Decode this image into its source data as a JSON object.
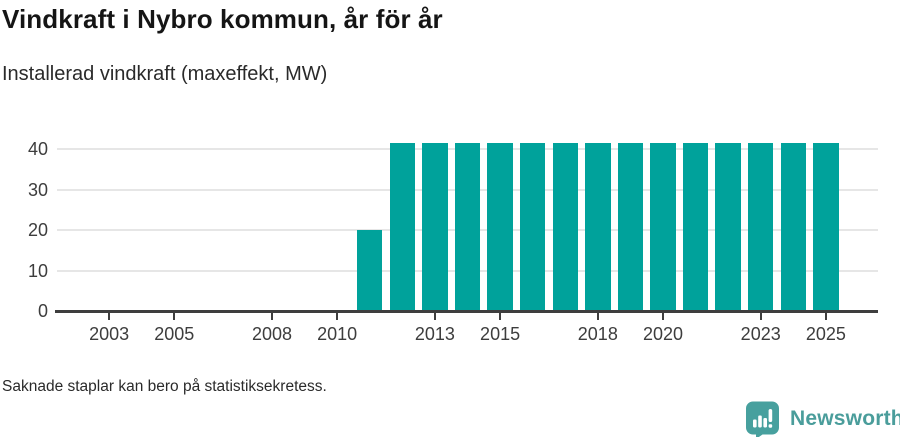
{
  "page": {
    "title": "Vindkraft i Nybro kommun, år för år",
    "subtitle": "Installerad vindkraft (maxeffekt, MW)",
    "footnote": "Saknade staplar kan bero på statistiksekretess.",
    "brand": {
      "name": "Newsworthy",
      "logo_icon": "speech-bubble-bar-chart-icon",
      "color": "#4a9d9b",
      "icon_color": "#47a09e"
    }
  },
  "chart_data": {
    "type": "bar",
    "title": "Vindkraft i Nybro kommun, år för år",
    "subtitle": "Installerad vindkraft (maxeffekt, MW)",
    "unit": "MW",
    "bar_color": "#00a29b",
    "grid": "horizontal",
    "legend": "none",
    "x_ticks": [
      2003,
      2005,
      2008,
      2010,
      2013,
      2015,
      2018,
      2020,
      2023,
      2025
    ],
    "x_range": [
      2001.4,
      2026.6
    ],
    "y_ticks": [
      0,
      10,
      20,
      30,
      40
    ],
    "ylim": [
      0,
      43
    ],
    "axis_color": "#3e3e3e",
    "grid_color": "#e6e6e6",
    "bars": [
      {
        "year": 2011,
        "value": 20
      },
      {
        "year": 2012,
        "value": 41.5
      },
      {
        "year": 2013,
        "value": 41.5
      },
      {
        "year": 2014,
        "value": 41.5
      },
      {
        "year": 2015,
        "value": 41.5
      },
      {
        "year": 2016,
        "value": 41.5
      },
      {
        "year": 2017,
        "value": 41.5
      },
      {
        "year": 2018,
        "value": 41.5
      },
      {
        "year": 2019,
        "value": 41.5
      },
      {
        "year": 2020,
        "value": 41.5
      },
      {
        "year": 2021,
        "value": 41.5
      },
      {
        "year": 2022,
        "value": 41.5
      },
      {
        "year": 2023,
        "value": 41.5
      },
      {
        "year": 2024,
        "value": 41.5
      },
      {
        "year": 2025,
        "value": 41.5
      }
    ]
  }
}
